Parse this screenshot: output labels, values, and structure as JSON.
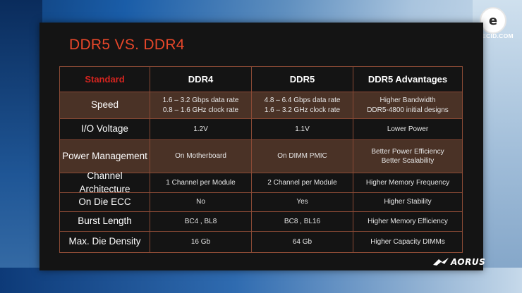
{
  "title": "DDR5 VS. DDR4",
  "watermark": {
    "text": "GECID.COM",
    "mark": "e"
  },
  "brand": "AORUS",
  "table": {
    "headers": [
      "Standard",
      "DDR4",
      "DDR5",
      "DDR5 Advantages"
    ],
    "rows": [
      {
        "label": "Speed",
        "ddr4": "1.6 – 3.2 Gbps data rate\n0.8 – 1.6 GHz clock rate",
        "ddr5": "4.8 – 6.4 Gbps data rate\n1.6 – 3.2 GHz clock rate",
        "advantage": "Higher Bandwidth\nDDR5-4800 initial designs"
      },
      {
        "label": "I/O Voltage",
        "ddr4": "1.2V",
        "ddr5": "1.1V",
        "advantage": "Lower Power"
      },
      {
        "label": "Power Management",
        "ddr4": "On Motherboard",
        "ddr5": "On DIMM PMIC",
        "advantage": "Better Power Efficiency\nBetter Scalability"
      },
      {
        "label": "Channel Architecture",
        "ddr4": "1 Channel per Module",
        "ddr5": "2 Channel per Module",
        "advantage": "Higher Memory Frequency"
      },
      {
        "label": "On Die ECC",
        "ddr4": "No",
        "ddr5": "Yes",
        "advantage": "Higher Stability"
      },
      {
        "label": "Burst Length",
        "ddr4": "BC4 , BL8",
        "ddr5": "BC8 , BL16",
        "advantage": "Higher Memory Efficiency"
      },
      {
        "label": "Max. Die Density",
        "ddr4": "16 Gb",
        "ddr5": "64 Gb",
        "advantage": "Higher Capacity DIMMs"
      }
    ]
  },
  "colors": {
    "title": "#e8472a",
    "standard_header": "#d4241f",
    "grid_line": "#8a4a35",
    "alt_row": "#4a3226",
    "slide_bg": "#141414"
  }
}
